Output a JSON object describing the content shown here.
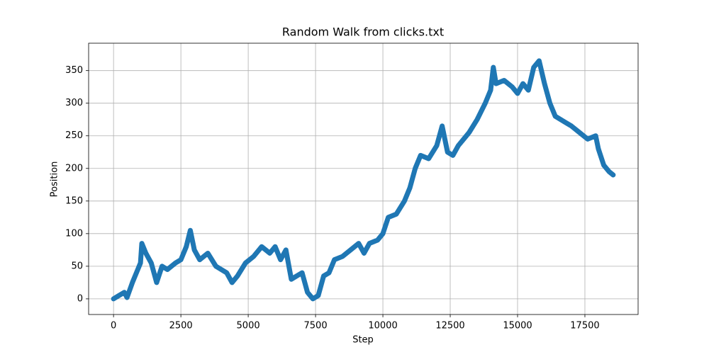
{
  "chart_data": {
    "type": "line",
    "title": "Random Walk from clicks.txt",
    "x_label": "Step",
    "y_label": "Position",
    "x": [
      0,
      200,
      400,
      500,
      700,
      900,
      1000,
      1050,
      1200,
      1400,
      1500,
      1600,
      1800,
      2000,
      2300,
      2500,
      2700,
      2850,
      3000,
      3200,
      3500,
      3800,
      4000,
      4200,
      4400,
      4600,
      4900,
      5200,
      5500,
      5800,
      6000,
      6200,
      6400,
      6600,
      6800,
      7000,
      7200,
      7400,
      7600,
      7800,
      8000,
      8200,
      8500,
      8800,
      9100,
      9300,
      9500,
      9800,
      10000,
      10200,
      10500,
      10800,
      11000,
      11200,
      11400,
      11700,
      12000,
      12200,
      12400,
      12600,
      12800,
      13000,
      13200,
      13500,
      13800,
      14000,
      14100,
      14200,
      14500,
      14800,
      15000,
      15200,
      15400,
      15600,
      15800,
      16000,
      16200,
      16400,
      16600,
      16800,
      17000,
      17300,
      17600,
      17900,
      18000,
      18200,
      18400,
      18550
    ],
    "series": [
      {
        "name": "Position",
        "color": "#1f77b4",
        "values": [
          0,
          5,
          10,
          2,
          25,
          45,
          55,
          85,
          70,
          55,
          40,
          25,
          50,
          45,
          55,
          60,
          80,
          105,
          75,
          60,
          70,
          50,
          45,
          40,
          25,
          35,
          55,
          65,
          80,
          70,
          80,
          60,
          75,
          30,
          35,
          40,
          10,
          0,
          5,
          35,
          40,
          60,
          65,
          75,
          85,
          70,
          85,
          90,
          100,
          125,
          130,
          150,
          170,
          200,
          220,
          215,
          235,
          265,
          225,
          220,
          235,
          245,
          255,
          275,
          300,
          320,
          355,
          330,
          335,
          325,
          315,
          330,
          320,
          355,
          365,
          330,
          300,
          280,
          275,
          270,
          265,
          255,
          245,
          250,
          230,
          205,
          195,
          190
        ]
      }
    ],
    "xlim": [
      -925,
      19475
    ],
    "ylim": [
      -24,
      392
    ],
    "xticks": [
      0,
      2500,
      5000,
      7500,
      10000,
      12500,
      15000,
      17500
    ],
    "yticks": [
      0,
      50,
      100,
      150,
      200,
      250,
      300,
      350
    ],
    "grid": true
  }
}
